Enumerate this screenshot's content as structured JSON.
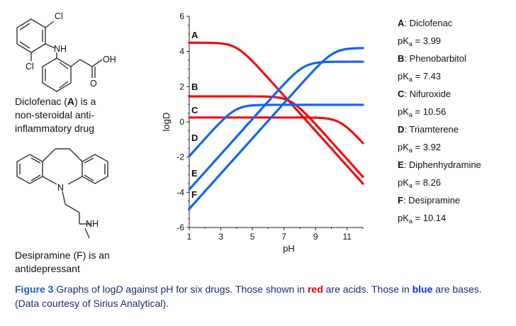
{
  "chart_data": {
    "type": "line",
    "xlabel": "pH",
    "ylabel": "logD",
    "xlim": [
      1,
      12
    ],
    "ylim": [
      -6,
      6
    ],
    "xticks": [
      "1",
      "3",
      "5",
      "7",
      "9",
      "11"
    ],
    "yticks": [
      "6",
      "4",
      "2",
      "0",
      "-2",
      "-4",
      "-6"
    ],
    "grid": false,
    "series": [
      {
        "name": "A",
        "kind": "acid",
        "color": "#ee1111",
        "pKa": 3.99,
        "logP": 4.5,
        "logP_ion": 0.2,
        "x": [
          1,
          2,
          3,
          3.5,
          4,
          4.5,
          5,
          6,
          7,
          8,
          9,
          10,
          11,
          12
        ],
        "y": [
          4.5,
          4.49,
          4.46,
          4.38,
          4.2,
          3.9,
          3.5,
          2.5,
          1.5,
          0.5,
          -0.5,
          -1.5,
          -2.5,
          -3.5
        ]
      },
      {
        "name": "B",
        "kind": "acid",
        "color": "#ee1111",
        "pKa": 7.43,
        "logP": 1.45,
        "logP_ion": -1.5,
        "x": [
          1,
          3,
          5,
          6,
          7,
          7.5,
          8,
          9,
          10,
          11,
          12
        ],
        "y": [
          1.45,
          1.45,
          1.44,
          1.43,
          1.32,
          1.15,
          0.85,
          -0.1,
          -1.1,
          -2.1,
          -3.1
        ]
      },
      {
        "name": "C",
        "kind": "acid",
        "color": "#ee1111",
        "pKa": 10.56,
        "logP": 0.25,
        "logP_ion": -1.2,
        "x": [
          1,
          5,
          8,
          9,
          10,
          10.5,
          11,
          11.5,
          12
        ],
        "y": [
          0.25,
          0.25,
          0.25,
          0.24,
          0.15,
          0.0,
          -0.3,
          -0.7,
          -1.15
        ]
      },
      {
        "name": "D",
        "kind": "base",
        "color": "#1166ee",
        "pKa": 3.92,
        "logP": 0.97,
        "logP_ion": -2.5,
        "x": [
          1,
          2,
          3,
          3.5,
          4,
          4.5,
          5,
          6,
          8,
          10,
          12
        ],
        "y": [
          -1.95,
          -0.95,
          0.03,
          0.43,
          0.68,
          0.85,
          0.92,
          0.96,
          0.97,
          0.97,
          0.97
        ]
      },
      {
        "name": "E",
        "kind": "base",
        "color": "#1166ee",
        "pKa": 8.26,
        "logP": 3.42,
        "logP_ion": -4,
        "x": [
          1,
          3,
          5,
          6,
          7,
          7.5,
          8,
          8.5,
          9,
          10,
          11,
          12
        ],
        "y": [
          -3.8,
          -1.8,
          0.2,
          1.2,
          2.2,
          2.68,
          3.09,
          3.29,
          3.36,
          3.41,
          3.42,
          3.42
        ]
      },
      {
        "name": "F",
        "kind": "base",
        "color": "#1166ee",
        "pKa": 10.14,
        "logP": 4.2,
        "logP_ion": -5,
        "x": [
          1,
          3,
          5,
          7,
          8,
          9,
          9.5,
          10,
          10.5,
          11,
          12
        ],
        "y": [
          -4.9,
          -2.9,
          -0.9,
          1.1,
          2.1,
          3.05,
          3.5,
          3.85,
          4.05,
          4.14,
          4.19
        ]
      }
    ]
  },
  "legend": [
    {
      "letter": "A",
      "name": ": Diclofenac",
      "pka_label": "pK",
      "pka_sub": "a",
      "pka_value": " = 3.99"
    },
    {
      "letter": "B",
      "name": ": Phenobarbitol",
      "pka_label": "pK",
      "pka_sub": "a",
      "pka_value": " = 7.43"
    },
    {
      "letter": "C",
      "name": ": Nifuroxide",
      "pka_label": "pK",
      "pka_sub": "a",
      "pka_value": " = 10.56"
    },
    {
      "letter": "D",
      "name": ": Triamterene",
      "pka_label": "pK",
      "pka_sub": "a",
      "pka_value": " = 3.92"
    },
    {
      "letter": "E",
      "name": ": Diphenhydramine",
      "pka_label": "pK",
      "pka_sub": "a",
      "pka_value": " = 8.26"
    },
    {
      "letter": "F",
      "name": ": Desipramine",
      "pka_label": "pK",
      "pka_sub": "a",
      "pka_value": " = 10.14"
    }
  ],
  "structures": {
    "diclofenac": {
      "caption_lines": [
        "Diclofenac (",
        "A",
        ") is a",
        "non-steroidal anti-",
        "inflammatory drug"
      ],
      "atoms": {
        "cl_top": "Cl",
        "nh": "NH",
        "cl_bottom": "Cl",
        "oh": "OH",
        "o": "O"
      }
    },
    "desipramine": {
      "caption_lines": [
        "Desipramine (F) is an",
        "antidepressant"
      ],
      "atoms": {
        "n": "N",
        "nh": "NH"
      }
    }
  },
  "caption": {
    "figure_label": "Figure 3",
    "part1": " Graphs of log",
    "italic": "D",
    "part2": " against pH for six drugs. Those shown in ",
    "red_word": "red",
    "part3": " are acids. Those in ",
    "blue_word": "blue",
    "part4": " are bases. (Data courtesy of Sirius Analytical)."
  }
}
